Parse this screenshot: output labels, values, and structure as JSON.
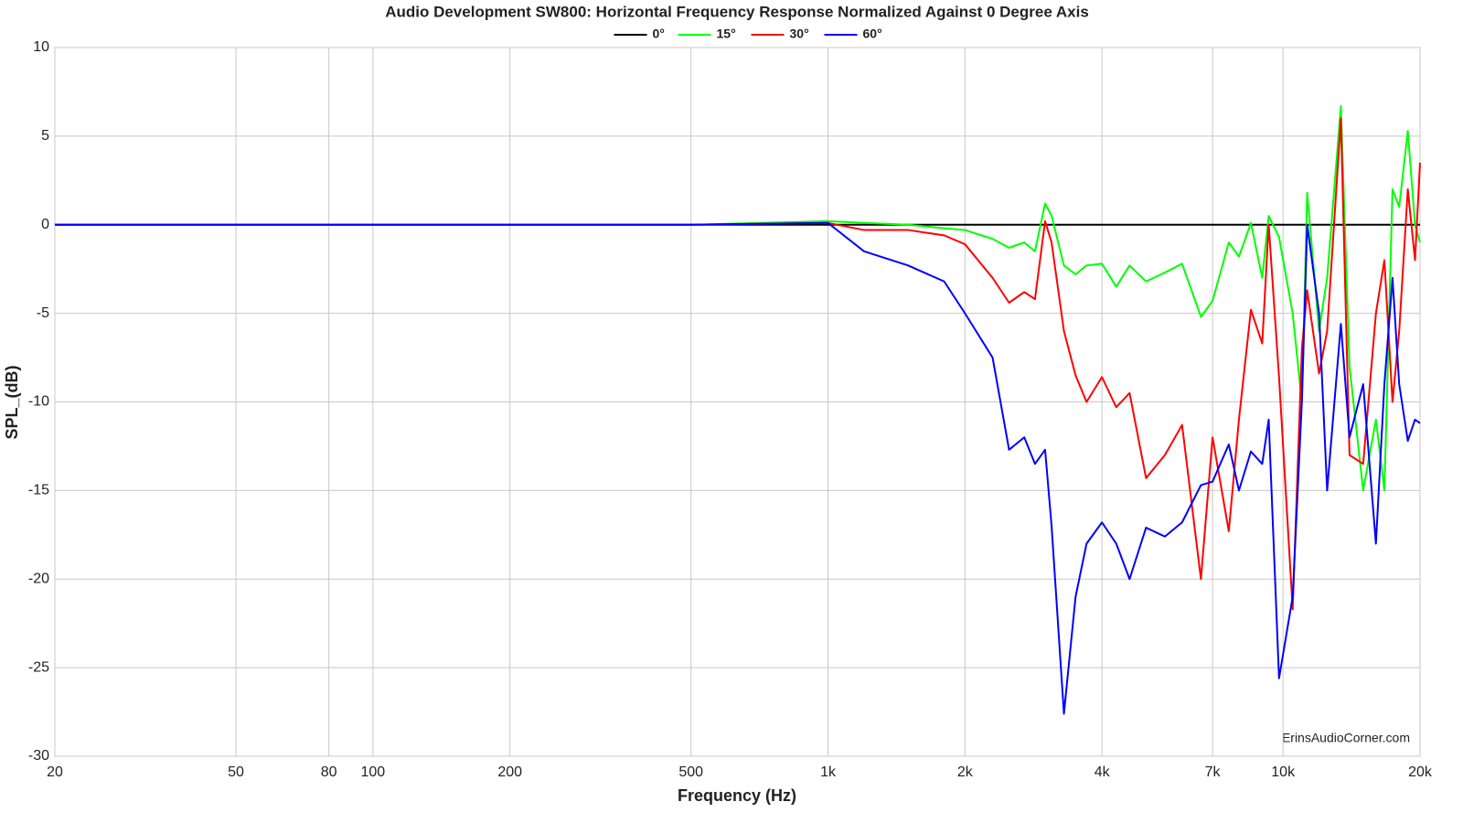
{
  "chart_data": {
    "type": "line",
    "title": "Audio Development SW800: Horizontal Frequency Response Normalized Against 0 Degree Axis",
    "xlabel": "Frequency (Hz)",
    "ylabel": "SPL_(dB)",
    "annotation": "ErinsAudioCorner.com",
    "xscale": "log",
    "grid": true,
    "legend": "top",
    "xlim": [
      20,
      20000
    ],
    "ylim": [
      -30,
      10
    ],
    "xticks": [
      20,
      50,
      80,
      100,
      200,
      500,
      {
        "value": 1000,
        "label": "1k"
      },
      {
        "value": 2000,
        "label": "2k"
      },
      {
        "value": 4000,
        "label": "4k"
      },
      {
        "value": 7000,
        "label": "7k"
      },
      {
        "value": 10000,
        "label": "10k"
      },
      {
        "value": 20000,
        "label": "20k"
      }
    ],
    "yticks": [
      10,
      5,
      0,
      -5,
      -10,
      -15,
      -20,
      -25,
      -30
    ],
    "x": [
      20,
      50,
      100,
      200,
      500,
      1000,
      1200,
      1500,
      1800,
      2000,
      2300,
      2500,
      2700,
      2850,
      3000,
      3100,
      3300,
      3500,
      3700,
      4000,
      4300,
      4600,
      5000,
      5500,
      6000,
      6600,
      7000,
      7600,
      8000,
      8500,
      9000,
      9300,
      9800,
      10500,
      11000,
      11300,
      12000,
      12500,
      13400,
      14000,
      15000,
      16000,
      16700,
      17400,
      18000,
      18800,
      19500,
      20000
    ],
    "series": [
      {
        "name": "0°",
        "color": "#000000",
        "values": [
          0,
          0,
          0,
          0,
          0,
          0,
          0,
          0,
          0,
          0,
          0,
          0,
          0,
          0,
          0,
          0,
          0,
          0,
          0,
          0,
          0,
          0,
          0,
          0,
          0,
          0,
          0,
          0,
          0,
          0,
          0,
          0,
          0,
          0,
          0,
          0,
          0,
          0,
          0,
          0,
          0,
          0,
          0,
          0,
          0,
          0,
          0,
          0
        ]
      },
      {
        "name": "15°",
        "color": "#00ff00",
        "values": [
          0,
          0,
          0,
          0,
          0,
          0.2,
          0.1,
          0,
          -0.2,
          -0.3,
          -0.8,
          -1.3,
          -1,
          -1.5,
          1.2,
          0.5,
          -2.3,
          -2.8,
          -2.3,
          -2.2,
          -3.5,
          -2.3,
          -3.2,
          -2.7,
          -2.2,
          -5.2,
          -4.3,
          -1,
          -1.8,
          0.1,
          -3,
          0.5,
          -0.7,
          -5,
          -10,
          1.8,
          -6,
          -3,
          6.7,
          -8,
          -15,
          -11,
          -15,
          2,
          1,
          5.3,
          0,
          -1
        ]
      },
      {
        "name": "30°",
        "color": "#ff0000",
        "values": [
          0,
          0,
          0,
          0,
          0,
          0.1,
          -0.3,
          -0.3,
          -0.6,
          -1.1,
          -3,
          -4.4,
          -3.8,
          -4.2,
          0.2,
          -1,
          -6,
          -8.5,
          -10,
          -8.6,
          -10.3,
          -9.5,
          -14.3,
          -13,
          -11.3,
          -20,
          -12,
          -17.3,
          -11,
          -4.8,
          -6.7,
          0,
          -8.6,
          -21.7,
          -7,
          -3.7,
          -8.4,
          -6,
          6,
          -13,
          -13.5,
          -5,
          -2,
          -10,
          -6,
          2,
          -2,
          3.5
        ]
      },
      {
        "name": "60°",
        "color": "#0000ff",
        "values": [
          0,
          0,
          0,
          0,
          0,
          0.1,
          -1.5,
          -2.3,
          -3.2,
          -5,
          -7.5,
          -12.7,
          -12,
          -13.5,
          -12.7,
          -17,
          -27.6,
          -21,
          -18,
          -16.8,
          -18,
          -20,
          -17.1,
          -17.6,
          -16.8,
          -14.7,
          -14.5,
          -12.4,
          -15,
          -12.8,
          -13.5,
          -11,
          -25.6,
          -21,
          -10,
          0,
          -5,
          -15,
          -5.6,
          -12,
          -9,
          -18,
          -9,
          -3,
          -9,
          -12.2,
          -11,
          -11.2
        ]
      }
    ]
  }
}
